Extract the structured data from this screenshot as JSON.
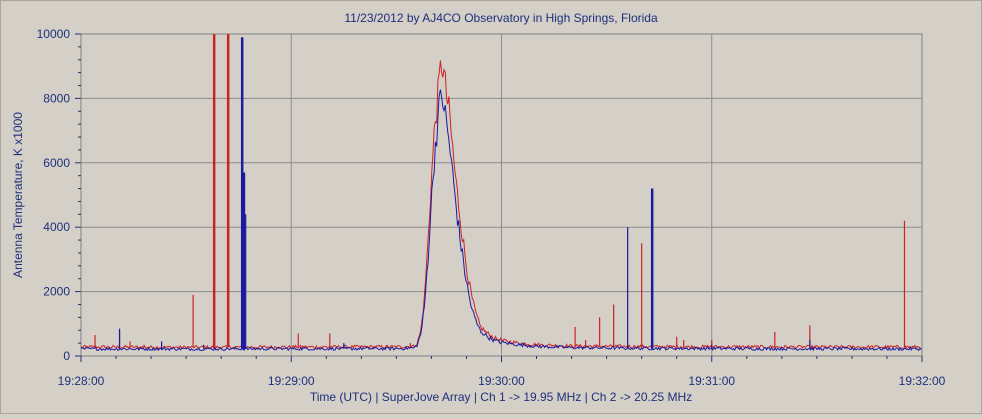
{
  "chart_data": {
    "type": "line",
    "title": "11/23/2012  by  AJ4CO Observatory  in  High Springs, Florida",
    "ylabel": "Antenna Temperature, K x1000",
    "xlabel": "Time (UTC)  |  SuperJove Array  |  Ch 1 -> 19.95 MHz  |  Ch 2 -> 20.25 MHz",
    "x_unit": "seconds after 19:28:00 UTC",
    "xlim": [
      0,
      240
    ],
    "ylim": [
      0,
      10000
    ],
    "x_ticks": [
      {
        "value": 0,
        "label": "19:28:00"
      },
      {
        "value": 60,
        "label": "19:29:00"
      },
      {
        "value": 120,
        "label": "19:30:00"
      },
      {
        "value": 180,
        "label": "19:31:00"
      },
      {
        "value": 240,
        "label": "19:32:00"
      }
    ],
    "y_ticks": [
      {
        "value": 0,
        "label": "0"
      },
      {
        "value": 2000,
        "label": "2000"
      },
      {
        "value": 4000,
        "label": "4000"
      },
      {
        "value": 6000,
        "label": "6000"
      },
      {
        "value": 8000,
        "label": "8000"
      },
      {
        "value": 10000,
        "label": "10000"
      }
    ],
    "grid": true,
    "legend": "none",
    "series": [
      {
        "channel": "Ch 1",
        "color": "#cc2222",
        "baseline": 280,
        "points": [
          [
            0,
            280
          ],
          [
            30,
            270
          ],
          [
            60,
            280
          ],
          [
            90,
            285
          ],
          [
            95,
            300
          ],
          [
            96,
            400
          ],
          [
            97,
            800
          ],
          [
            98,
            1800
          ],
          [
            99,
            3500
          ],
          [
            100,
            5500
          ],
          [
            101,
            7200
          ],
          [
            102,
            8200
          ],
          [
            102.5,
            8800
          ],
          [
            103,
            9200
          ],
          [
            103.5,
            8800
          ],
          [
            104,
            8300
          ],
          [
            105,
            7600
          ],
          [
            106,
            6500
          ],
          [
            107,
            5400
          ],
          [
            108,
            4500
          ],
          [
            109,
            3600
          ],
          [
            110,
            2800
          ],
          [
            111,
            2100
          ],
          [
            112,
            1600
          ],
          [
            113,
            1200
          ],
          [
            114,
            900
          ],
          [
            116,
            700
          ],
          [
            118,
            550
          ],
          [
            120,
            480
          ],
          [
            125,
            400
          ],
          [
            130,
            350
          ],
          [
            140,
            310
          ],
          [
            160,
            290
          ],
          [
            200,
            280
          ],
          [
            240,
            280
          ]
        ],
        "spikes": [
          [
            4,
            650
          ],
          [
            11,
            800
          ],
          [
            14,
            450
          ],
          [
            18,
            350
          ],
          [
            32,
            1900
          ],
          [
            38,
            10000
          ],
          [
            42,
            10000
          ],
          [
            62,
            700
          ],
          [
            71,
            700
          ],
          [
            94,
            400
          ],
          [
            141,
            900
          ],
          [
            144,
            500
          ],
          [
            148,
            1200
          ],
          [
            152,
            1600
          ],
          [
            160,
            3500
          ],
          [
            170,
            600
          ],
          [
            172,
            500
          ],
          [
            180,
            500
          ],
          [
            198,
            750
          ],
          [
            208,
            950
          ],
          [
            235,
            4200
          ]
        ]
      },
      {
        "channel": "Ch 2",
        "color": "#1a1aa0",
        "baseline": 220,
        "points": [
          [
            0,
            220
          ],
          [
            30,
            220
          ],
          [
            60,
            225
          ],
          [
            90,
            230
          ],
          [
            95,
            250
          ],
          [
            96,
            350
          ],
          [
            97,
            700
          ],
          [
            98,
            1500
          ],
          [
            99,
            3000
          ],
          [
            100,
            4800
          ],
          [
            101,
            6400
          ],
          [
            102,
            7500
          ],
          [
            102.5,
            7900
          ],
          [
            103,
            8100
          ],
          [
            103.5,
            7900
          ],
          [
            104,
            7400
          ],
          [
            105,
            6700
          ],
          [
            106,
            5700
          ],
          [
            107,
            4700
          ],
          [
            108,
            3800
          ],
          [
            109,
            3000
          ],
          [
            110,
            2300
          ],
          [
            111,
            1700
          ],
          [
            112,
            1300
          ],
          [
            113,
            1000
          ],
          [
            114,
            780
          ],
          [
            116,
            600
          ],
          [
            118,
            480
          ],
          [
            120,
            420
          ],
          [
            125,
            350
          ],
          [
            130,
            300
          ],
          [
            140,
            260
          ],
          [
            160,
            240
          ],
          [
            200,
            225
          ],
          [
            240,
            220
          ]
        ],
        "spikes": [
          [
            11,
            850
          ],
          [
            23,
            450
          ],
          [
            35,
            350
          ],
          [
            46,
            9900
          ],
          [
            46.5,
            5700
          ],
          [
            47,
            4400
          ],
          [
            75,
            400
          ],
          [
            156,
            4000
          ],
          [
            163,
            5200
          ],
          [
            180,
            350
          ],
          [
            208,
            500
          ]
        ]
      }
    ]
  }
}
